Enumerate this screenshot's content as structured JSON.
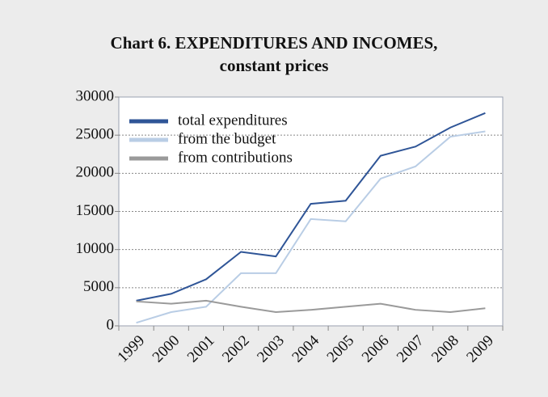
{
  "chart_data": {
    "type": "line",
    "title": "Chart 6. EXPENDITURES AND INCOMES,",
    "subtitle": "constant prices",
    "categories": [
      "1999",
      "2000",
      "2001",
      "2002",
      "2003",
      "2004",
      "2005",
      "2006",
      "2007",
      "2008",
      "2009"
    ],
    "series": [
      {
        "name": "total expenditures",
        "color": "#2f5597",
        "values": [
          3300,
          4200,
          6100,
          9700,
          9100,
          16000,
          16400,
          22300,
          23500,
          26000,
          27900
        ]
      },
      {
        "name": "from the budget",
        "color": "#b9cde5",
        "values": [
          400,
          1800,
          2500,
          6900,
          6900,
          14000,
          13700,
          19300,
          20900,
          24800,
          25500
        ]
      },
      {
        "name": "from contributions",
        "color": "#9a9a9a",
        "values": [
          3200,
          2900,
          3300,
          2500,
          1800,
          2100,
          2500,
          2900,
          2100,
          1800,
          2300
        ]
      }
    ],
    "ylim": [
      0,
      30000
    ],
    "yticks": [
      0,
      5000,
      10000,
      15000,
      20000,
      25000,
      30000
    ],
    "grid": true,
    "legend": "top-left"
  }
}
